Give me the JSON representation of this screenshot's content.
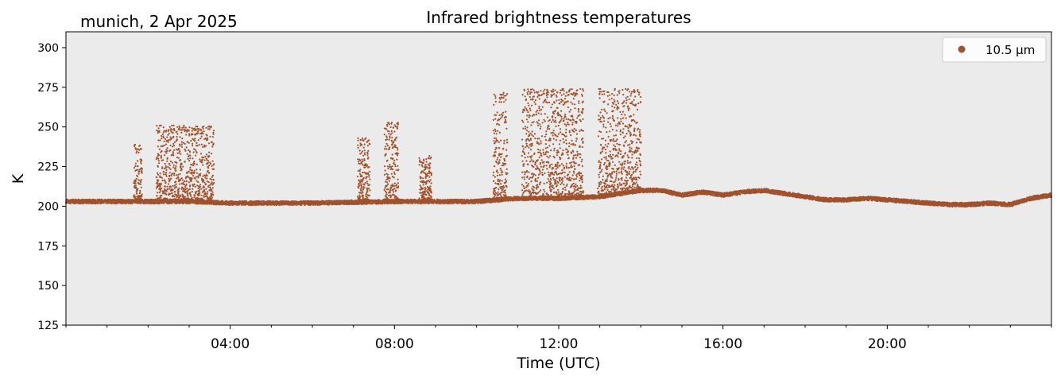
{
  "chart_data": {
    "type": "scatter",
    "title": "Infrared brightness temperatures",
    "location_label": "munich, 2 Apr 2025",
    "xlabel": "Time (UTC)",
    "ylabel": "K",
    "x_unit": "hours UTC",
    "xlim": [
      0,
      24
    ],
    "ylim": [
      125,
      310
    ],
    "x_ticks": [
      {
        "value": 4,
        "label": "04:00"
      },
      {
        "value": 8,
        "label": "08:00"
      },
      {
        "value": 12,
        "label": "12:00"
      },
      {
        "value": 16,
        "label": "16:00"
      },
      {
        "value": 20,
        "label": "20:00"
      }
    ],
    "y_ticks": [
      125,
      150,
      175,
      200,
      225,
      250,
      275,
      300
    ],
    "grid": false,
    "legend_position": "top-right",
    "plot_background": "#ebebeb",
    "series": [
      {
        "name": "10.5 µm",
        "color": "#a0522d",
        "baseline": [
          [
            0.0,
            203
          ],
          [
            1.0,
            203
          ],
          [
            2.0,
            203
          ],
          [
            3.0,
            203
          ],
          [
            4.0,
            202
          ],
          [
            5.0,
            202
          ],
          [
            6.0,
            202
          ],
          [
            7.0,
            202.5
          ],
          [
            8.0,
            203
          ],
          [
            9.0,
            203
          ],
          [
            10.0,
            203
          ],
          [
            10.5,
            204
          ],
          [
            11.0,
            205
          ],
          [
            12.0,
            205
          ],
          [
            13.0,
            206
          ],
          [
            14.0,
            210
          ],
          [
            14.5,
            210
          ],
          [
            15.0,
            207
          ],
          [
            15.5,
            209
          ],
          [
            16.0,
            207
          ],
          [
            16.5,
            209
          ],
          [
            17.0,
            210
          ],
          [
            17.5,
            208
          ],
          [
            18.0,
            206
          ],
          [
            18.5,
            204
          ],
          [
            19.0,
            204
          ],
          [
            19.5,
            205
          ],
          [
            20.0,
            204
          ],
          [
            20.5,
            203
          ],
          [
            21.0,
            202
          ],
          [
            21.5,
            201
          ],
          [
            22.0,
            201
          ],
          [
            22.5,
            202
          ],
          [
            23.0,
            201
          ],
          [
            23.5,
            205
          ],
          [
            24.0,
            207
          ]
        ],
        "spike_bursts": [
          {
            "start": 1.65,
            "end": 1.85,
            "peak": 239
          },
          {
            "start": 2.2,
            "end": 3.6,
            "peak": 251
          },
          {
            "start": 7.1,
            "end": 7.4,
            "peak": 243
          },
          {
            "start": 7.75,
            "end": 8.1,
            "peak": 253
          },
          {
            "start": 8.6,
            "end": 8.9,
            "peak": 232
          },
          {
            "start": 10.4,
            "end": 10.75,
            "peak": 273
          },
          {
            "start": 11.1,
            "end": 12.6,
            "peak": 274
          },
          {
            "start": 12.95,
            "end": 14.0,
            "peak": 274
          }
        ]
      }
    ]
  }
}
